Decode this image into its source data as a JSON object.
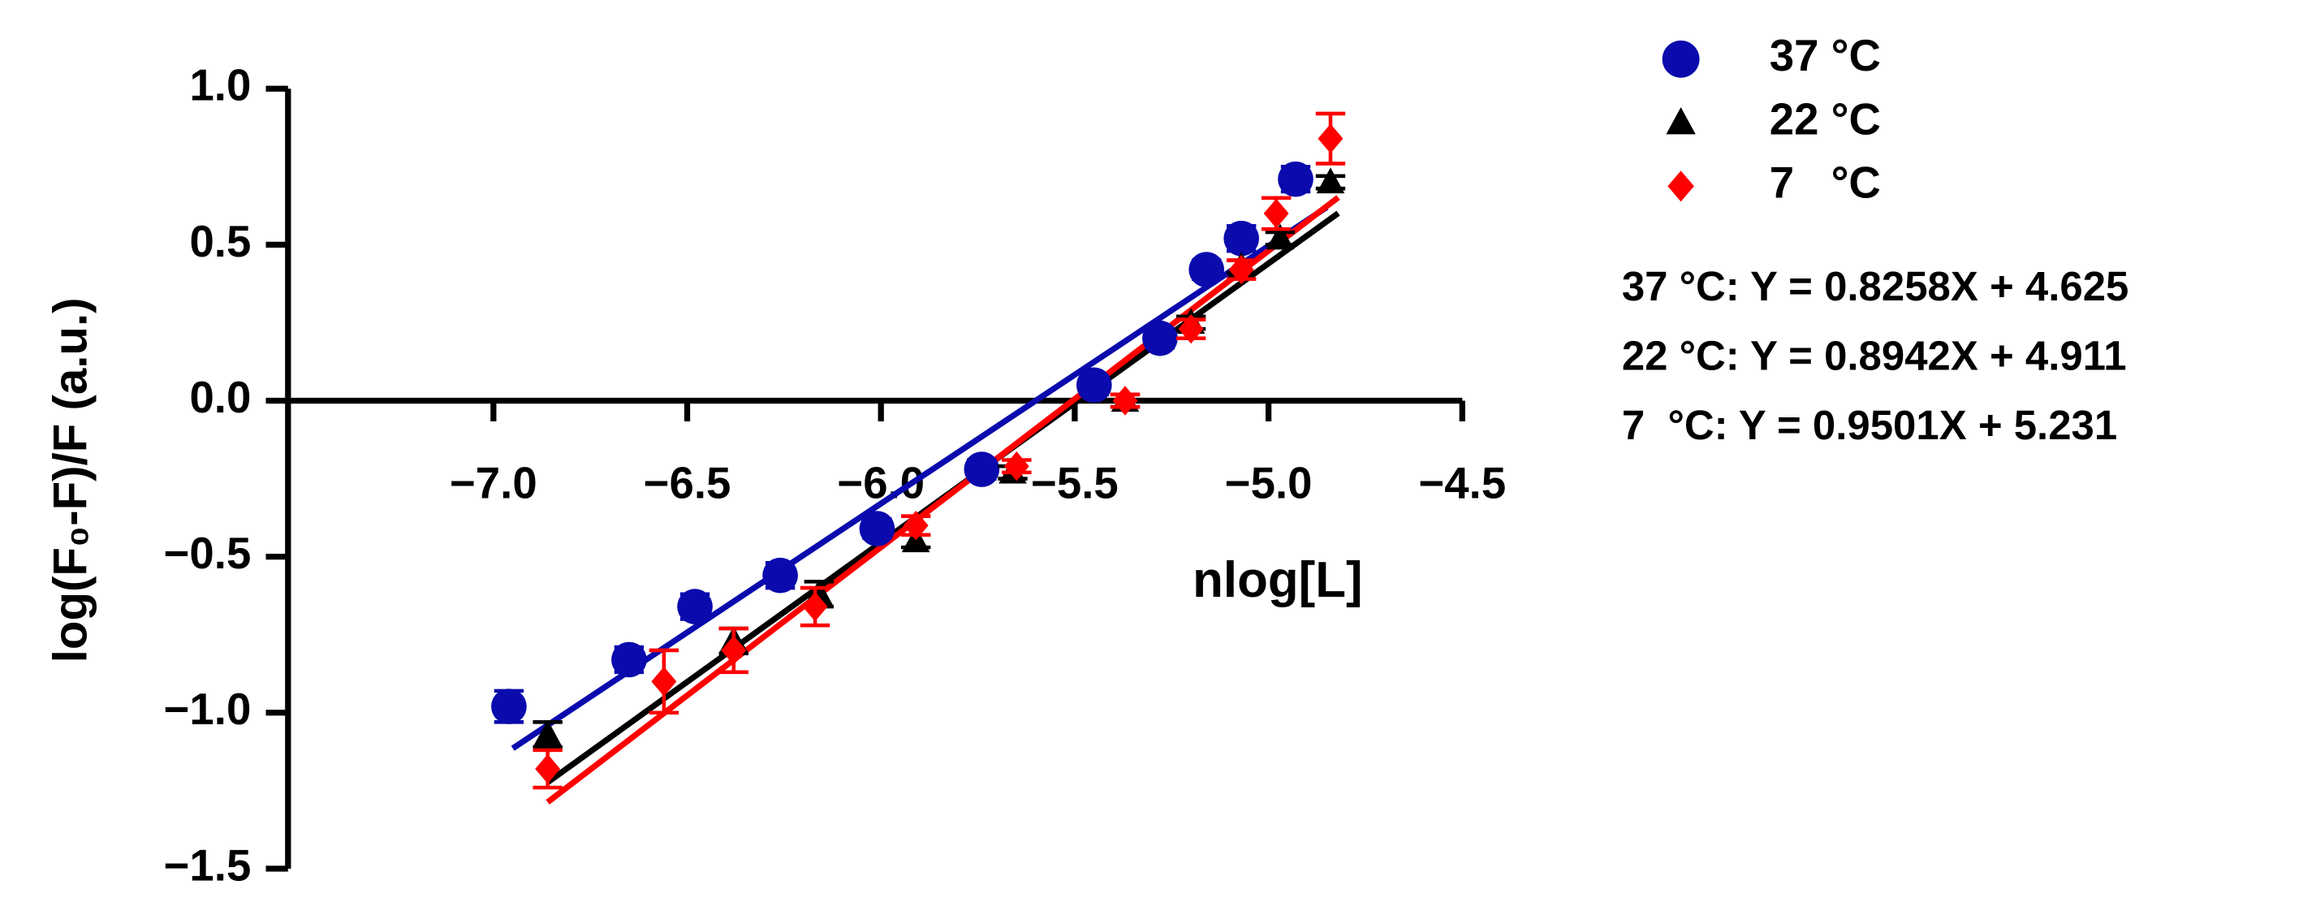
{
  "chart_data": {
    "type": "scatter",
    "x_label": "nlog[L]",
    "y_label": "log(F₀-F)/F (a.u.)",
    "xlim": [
      -7.53,
      -4.5
    ],
    "ylim": [
      -1.5,
      1.0
    ],
    "xticks": [
      {
        "value": -7.0,
        "label": "−7.0"
      },
      {
        "value": -6.5,
        "label": "−6.5"
      },
      {
        "value": -6.0,
        "label": "−6.0"
      },
      {
        "value": -5.5,
        "label": "−5.5"
      },
      {
        "value": -5.0,
        "label": "−5.0"
      },
      {
        "value": -4.5,
        "label": "−4.5"
      }
    ],
    "yticks": [
      {
        "value": -1.5,
        "label": "−1.5"
      },
      {
        "value": -1.0,
        "label": "−1.0"
      },
      {
        "value": -0.5,
        "label": "−0.5"
      },
      {
        "value": 0,
        "label": "0.0"
      },
      {
        "value": 0.5,
        "label": "0.5"
      },
      {
        "value": 1.0,
        "label": "1.0"
      }
    ],
    "series": [
      {
        "name": "37 °C",
        "color": "#0a0aad",
        "marker": "circle",
        "x": [
          -6.96,
          -6.65,
          -6.48,
          -6.26,
          -6.01,
          -5.74,
          -5.45,
          -5.28,
          -5.16,
          -5.07,
          -4.93
        ],
        "values": [
          -0.98,
          -0.83,
          -0.66,
          -0.56,
          -0.41,
          -0.22,
          0.05,
          0.2,
          0.42,
          0.52,
          0.71
        ],
        "errors": [
          0.05,
          0.04,
          0.04,
          0.04,
          0.03,
          0.03,
          0.03,
          0.03,
          0.03,
          0.04,
          0.04
        ],
        "fit": {
          "equation": "37 °C: Y = 0.8258X + 4.625",
          "slope": 0.8258,
          "intercept": 4.625,
          "x_range": [
            -6.95,
            -4.85
          ]
        }
      },
      {
        "name": "22 °C",
        "color": "#000000",
        "marker": "triangle",
        "x": [
          -6.86,
          -6.38,
          -6.16,
          -5.91,
          -5.66,
          -5.37,
          -5.2,
          -5.07,
          -4.97,
          -4.84
        ],
        "values": [
          -1.07,
          -0.77,
          -0.62,
          -0.45,
          -0.23,
          0.0,
          0.25,
          0.43,
          0.52,
          0.7
        ],
        "errors": [
          0.04,
          0.04,
          0.04,
          0.02,
          0.02,
          0.02,
          0.02,
          0.02,
          0.02,
          0.02
        ],
        "fit": {
          "equation": "22 °C: Y = 0.8942X + 4.911",
          "slope": 0.8942,
          "intercept": 4.911,
          "x_range": [
            -6.86,
            -4.82
          ]
        }
      },
      {
        "name": "7   °C",
        "color": "#ff0000",
        "marker": "diamond",
        "x": [
          -6.86,
          -6.56,
          -6.38,
          -6.17,
          -5.91,
          -5.65,
          -5.37,
          -5.2,
          -5.07,
          -4.98,
          -4.84
        ],
        "values": [
          -1.18,
          -0.9,
          -0.8,
          -0.66,
          -0.4,
          -0.21,
          0.0,
          0.23,
          0.42,
          0.6,
          0.84
        ],
        "errors": [
          0.06,
          0.1,
          0.07,
          0.06,
          0.03,
          0.02,
          0.02,
          0.03,
          0.03,
          0.05,
          0.08
        ],
        "fit": {
          "equation": "7  °C: Y = 0.9501X + 5.231",
          "slope": 0.9501,
          "intercept": 5.231,
          "x_range": [
            -6.86,
            -4.82
          ]
        }
      }
    ]
  }
}
